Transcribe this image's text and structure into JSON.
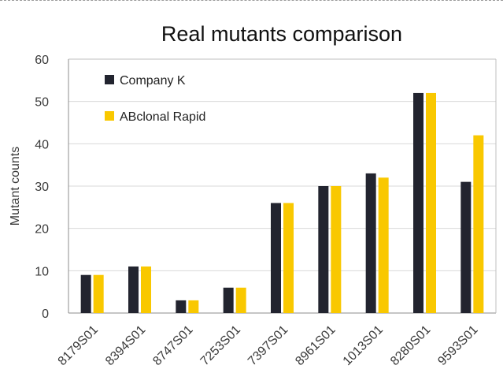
{
  "chart_data": {
    "type": "bar",
    "title": "Real mutants comparison",
    "xlabel": "",
    "ylabel": "Mutant counts",
    "ylim": [
      0,
      60
    ],
    "yticks": [
      0,
      10,
      20,
      30,
      40,
      50,
      60
    ],
    "grid": true,
    "legend_position": "top-left",
    "categories": [
      "8179S01",
      "8394S01",
      "8747S01",
      "7253S01",
      "7397S01",
      "8961S01",
      "1013S01",
      "8280S01",
      "9593S01"
    ],
    "series": [
      {
        "name": "Company K",
        "color": "#22242f",
        "values": [
          9,
          11,
          3,
          6,
          26,
          30,
          33,
          52,
          31
        ]
      },
      {
        "name": "ABclonal Rapid",
        "color": "#f9c800",
        "values": [
          9,
          11,
          3,
          6,
          26,
          30,
          32,
          52,
          42
        ]
      }
    ]
  }
}
